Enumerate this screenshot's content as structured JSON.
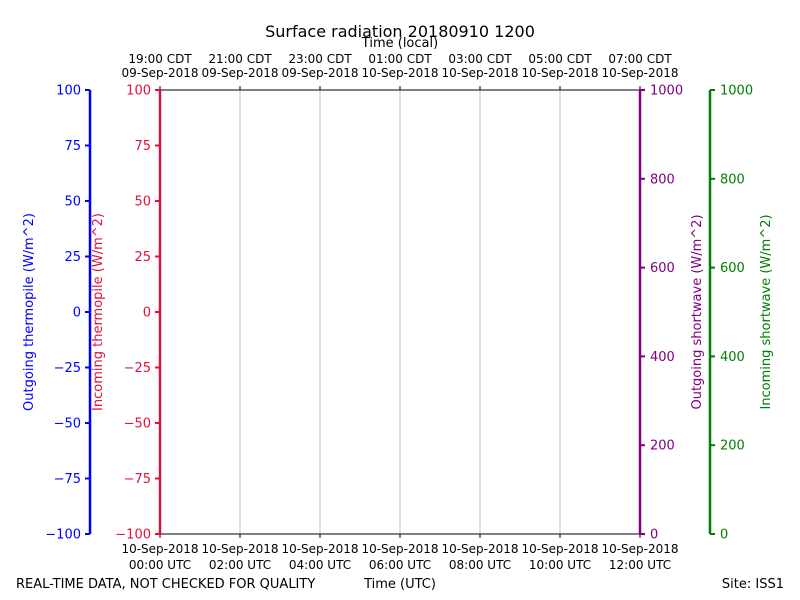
{
  "chart_data": {
    "type": "line",
    "title": "Surface radiation 20180910 1200",
    "top_axis_label": "Time (local)",
    "xlabel": "Time (UTC)",
    "x_utc_ticks": [
      [
        "10-Sep-2018",
        "00:00 UTC"
      ],
      [
        "10-Sep-2018",
        "02:00 UTC"
      ],
      [
        "10-Sep-2018",
        "04:00 UTC"
      ],
      [
        "10-Sep-2018",
        "06:00 UTC"
      ],
      [
        "10-Sep-2018",
        "08:00 UTC"
      ],
      [
        "10-Sep-2018",
        "10:00 UTC"
      ],
      [
        "10-Sep-2018",
        "12:00 UTC"
      ]
    ],
    "x_local_ticks": [
      [
        "19:00 CDT",
        "09-Sep-2018"
      ],
      [
        "21:00 CDT",
        "09-Sep-2018"
      ],
      [
        "23:00 CDT",
        "09-Sep-2018"
      ],
      [
        "01:00 CDT",
        "10-Sep-2018"
      ],
      [
        "03:00 CDT",
        "10-Sep-2018"
      ],
      [
        "05:00 CDT",
        "10-Sep-2018"
      ],
      [
        "07:00 CDT",
        "10-Sep-2018"
      ]
    ],
    "xlim": [
      "2018-09-10 00:00",
      "2018-09-10 12:00"
    ],
    "grid": true,
    "axes": {
      "outgoing_thermopile": {
        "label": "Outgoing thermopile (W/m^2)",
        "color": "#0000ff",
        "ylim": [
          -100,
          100
        ],
        "ticks": [
          -100,
          -75,
          -50,
          -25,
          0,
          25,
          50,
          75,
          100
        ]
      },
      "incoming_thermopile": {
        "label": "Incoming thermopile (W/m^2)",
        "color": "#dc143c",
        "ylim": [
          -100,
          100
        ],
        "ticks": [
          -100,
          -75,
          -50,
          -25,
          0,
          25,
          50,
          75,
          100
        ]
      },
      "outgoing_shortwave": {
        "label": "Outgoing shortwave (W/m^2)",
        "color": "#800080",
        "ylim": [
          0,
          1000
        ],
        "ticks": [
          0,
          200,
          400,
          600,
          800,
          1000
        ]
      },
      "incoming_shortwave": {
        "label": "Incoming shortwave (W/m^2)",
        "color": "#008000",
        "ylim": [
          0,
          1000
        ],
        "ticks": [
          0,
          200,
          400,
          600,
          800,
          1000
        ]
      }
    },
    "series": []
  },
  "footer": {
    "disclaimer": "REAL-TIME DATA, NOT CHECKED FOR QUALITY",
    "site": "Site: ISS1"
  }
}
